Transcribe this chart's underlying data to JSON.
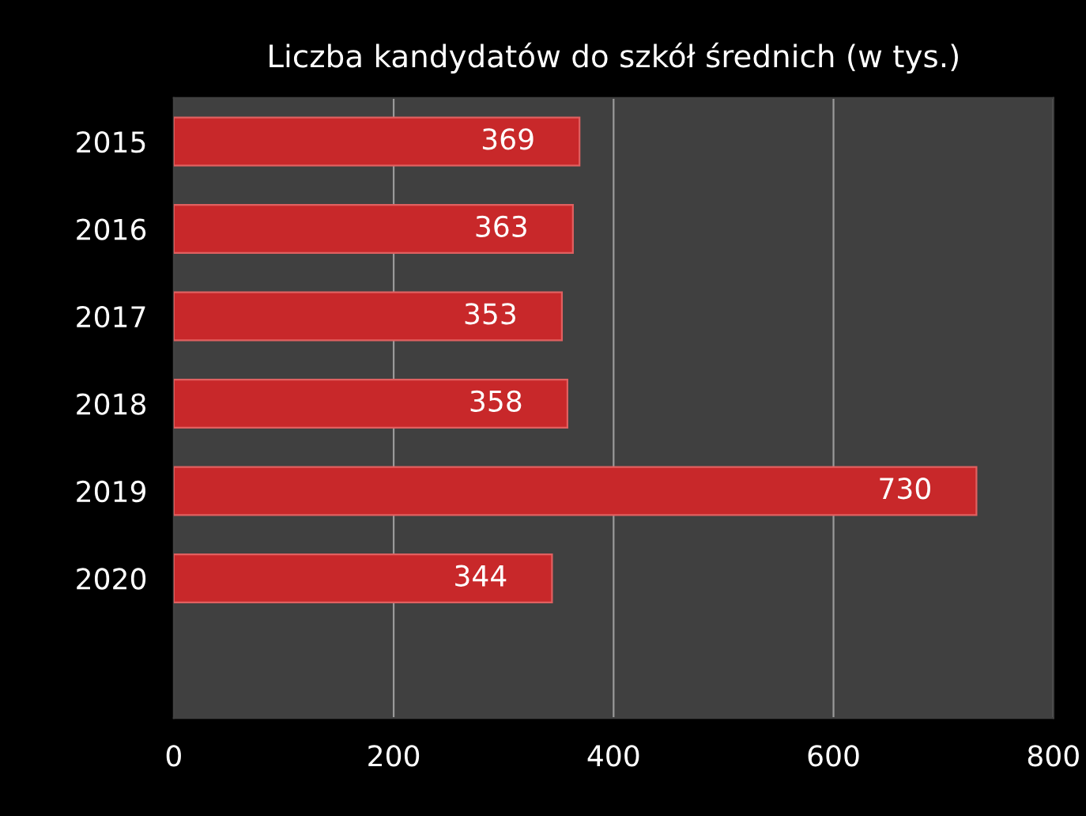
{
  "chart_data": {
    "type": "bar",
    "orientation": "horizontal",
    "title": "Liczba kandydatów do szkół średnich (w tys.)",
    "categories": [
      "2015",
      "2016",
      "2017",
      "2018",
      "2019",
      "2020"
    ],
    "values": [
      369,
      363,
      353,
      358,
      730,
      344
    ],
    "color": "#c8282a",
    "xlim": [
      0,
      800
    ],
    "xticks": [
      0,
      200,
      400,
      600,
      800
    ],
    "grid": "x",
    "data_labels": true
  }
}
